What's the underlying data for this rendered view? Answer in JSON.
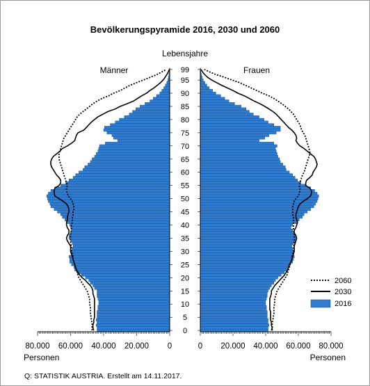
{
  "chart_data": {
    "type": "bar",
    "title": "Bevölkerungspyramide 2016, 2030 und 2060",
    "y_axis_title": "Lebensjahre",
    "left_label": "Männer",
    "right_label": "Frauen",
    "x_unit_left": "Personen",
    "x_unit_right": "Personen",
    "source": "Q: STATISTIK AUSTRIA. Erstellt am 14.11.2017.",
    "xlim": [
      0,
      80000
    ],
    "ylim": [
      0,
      100
    ],
    "y_ticks": [
      "0",
      "5",
      "10",
      "15",
      "20",
      "25",
      "30",
      "35",
      "40",
      "45",
      "50",
      "55",
      "60",
      "65",
      "70",
      "75",
      "80",
      "85",
      "90",
      "95",
      "99"
    ],
    "x_ticks_left": [
      "80.000",
      "60.000",
      "40.000",
      "20.000",
      "0"
    ],
    "x_ticks_right": [
      "0",
      "20.000",
      "40.000",
      "60.000",
      "80.000"
    ],
    "legend": [
      {
        "name": "2060",
        "style": "dotted"
      },
      {
        "name": "2030",
        "style": "solid"
      },
      {
        "name": "2016",
        "style": "bar"
      }
    ],
    "colors": {
      "bar": "#2e7bcf",
      "bar_edge": "#1a4f8a",
      "line": "#000000"
    },
    "ages": [
      0,
      1,
      2,
      3,
      4,
      5,
      6,
      7,
      8,
      9,
      10,
      11,
      12,
      13,
      14,
      15,
      16,
      17,
      18,
      19,
      20,
      21,
      22,
      23,
      24,
      25,
      26,
      27,
      28,
      29,
      30,
      31,
      32,
      33,
      34,
      35,
      36,
      37,
      38,
      39,
      40,
      41,
      42,
      43,
      44,
      45,
      46,
      47,
      48,
      49,
      50,
      51,
      52,
      53,
      54,
      55,
      56,
      57,
      58,
      59,
      60,
      61,
      62,
      63,
      64,
      65,
      66,
      67,
      68,
      69,
      70,
      71,
      72,
      73,
      74,
      75,
      76,
      77,
      78,
      79,
      80,
      81,
      82,
      83,
      84,
      85,
      86,
      87,
      88,
      89,
      90,
      91,
      92,
      93,
      94,
      95,
      96,
      97,
      98,
      99
    ],
    "series": [
      {
        "name": "2016",
        "sex": "Männer",
        "values": [
          44000,
          44000,
          44500,
          44000,
          44500,
          44000,
          44000,
          44000,
          43500,
          43500,
          43000,
          43000,
          43500,
          44000,
          44000,
          44000,
          45500,
          46500,
          48000,
          49000,
          51000,
          53500,
          56000,
          57500,
          58000,
          59500,
          60500,
          60500,
          61000,
          59500,
          60000,
          59000,
          58500,
          59000,
          60000,
          61000,
          61000,
          60000,
          59500,
          60000,
          60500,
          62500,
          63500,
          65000,
          66000,
          68000,
          70000,
          72000,
          72500,
          73500,
          74000,
          74500,
          73500,
          72000,
          69500,
          66000,
          63000,
          61000,
          58500,
          57000,
          55000,
          52500,
          51500,
          49500,
          48000,
          47000,
          45500,
          44500,
          43500,
          43000,
          42500,
          39000,
          31500,
          34000,
          35000,
          38000,
          40000,
          39500,
          36000,
          33000,
          30500,
          27500,
          24500,
          22500,
          20500,
          18000,
          15000,
          12000,
          10000,
          8000,
          6000,
          4800,
          3600,
          2600,
          1800,
          1200,
          800,
          500,
          300,
          200
        ]
      },
      {
        "name": "2016",
        "sex": "Frauen",
        "values": [
          41500,
          41500,
          42000,
          41500,
          41500,
          41000,
          41000,
          41000,
          40500,
          40500,
          40000,
          40000,
          40500,
          41000,
          41000,
          41500,
          42500,
          43500,
          45000,
          46000,
          47500,
          49500,
          51500,
          53000,
          54000,
          55000,
          56500,
          57000,
          57500,
          56500,
          57000,
          56500,
          56000,
          57000,
          58500,
          59000,
          58500,
          57500,
          56500,
          55500,
          56500,
          59000,
          60500,
          62500,
          63500,
          65500,
          67500,
          69500,
          70500,
          71500,
          72000,
          72500,
          71500,
          70000,
          67500,
          64500,
          61500,
          59500,
          58000,
          56500,
          54500,
          52500,
          52000,
          50500,
          49000,
          48500,
          47500,
          47000,
          46500,
          46000,
          47000,
          45000,
          36000,
          39500,
          42000,
          46500,
          49000,
          49000,
          45000,
          41500,
          39000,
          36000,
          32500,
          30000,
          28000,
          25000,
          21000,
          17500,
          15000,
          12500,
          9500,
          7500,
          5500,
          4000,
          2800,
          1800,
          1200,
          700,
          400,
          200
        ]
      },
      {
        "name": "2030",
        "sex": "Männer",
        "values": [
          46000,
          46500,
          46500,
          46000,
          46000,
          45500,
          45500,
          45500,
          45500,
          45500,
          45500,
          45500,
          45500,
          46000,
          46500,
          46500,
          47000,
          48000,
          49500,
          51000,
          53000,
          54500,
          55500,
          56500,
          57000,
          57500,
          58000,
          58500,
          59000,
          59500,
          60000,
          60000,
          60000,
          61000,
          62000,
          62500,
          62000,
          61000,
          61000,
          62000,
          62500,
          62500,
          62000,
          62000,
          61500,
          61000,
          61000,
          61500,
          62500,
          64500,
          67000,
          69500,
          70000,
          70000,
          69500,
          67000,
          66000,
          66000,
          67000,
          68500,
          69500,
          70500,
          71500,
          72000,
          72000,
          71500,
          70500,
          68500,
          66500,
          65000,
          62000,
          59500,
          57500,
          57000,
          56500,
          55500,
          52000,
          50500,
          49000,
          47500,
          45500,
          43500,
          40500,
          37500,
          33000,
          30000,
          26000,
          22000,
          19500,
          17000,
          14000,
          12000,
          9500,
          7500,
          5500,
          4000,
          2800,
          1800,
          900,
          300
        ]
      },
      {
        "name": "2030",
        "sex": "Frauen",
        "values": [
          43500,
          44000,
          43500,
          43500,
          43000,
          43000,
          43000,
          43000,
          42500,
          42500,
          42500,
          42500,
          42500,
          43000,
          43500,
          43500,
          44500,
          45500,
          47000,
          48500,
          50000,
          51500,
          52500,
          53500,
          54000,
          54500,
          55500,
          56000,
          56500,
          57000,
          57500,
          57500,
          57500,
          58000,
          58500,
          59000,
          58500,
          57500,
          57500,
          58500,
          59000,
          59500,
          59000,
          58500,
          58500,
          59000,
          59500,
          60000,
          61000,
          63000,
          65500,
          67500,
          68000,
          68000,
          67000,
          64500,
          64500,
          65000,
          67000,
          68500,
          69000,
          70000,
          71000,
          71500,
          71000,
          70500,
          69500,
          67500,
          65500,
          63500,
          61000,
          59500,
          58500,
          59000,
          58500,
          57500,
          56000,
          54000,
          52500,
          51000,
          49500,
          48000,
          46500,
          44500,
          42000,
          39500,
          36500,
          33000,
          30000,
          27000,
          23000,
          20000,
          16500,
          13000,
          10000,
          7000,
          4500,
          2800,
          1400,
          500
        ]
      },
      {
        "name": "2060",
        "sex": "Männer",
        "values": [
          47000,
          47000,
          47000,
          47000,
          47500,
          47500,
          48000,
          48000,
          48000,
          48000,
          48500,
          48500,
          48500,
          49000,
          49500,
          50000,
          51000,
          52000,
          53000,
          54000,
          55000,
          55500,
          56000,
          56500,
          57000,
          57500,
          58000,
          58500,
          58500,
          59000,
          59500,
          59500,
          59500,
          60000,
          60000,
          60000,
          60000,
          60000,
          59500,
          59500,
          59500,
          59000,
          59000,
          59000,
          58500,
          58500,
          58000,
          58000,
          58500,
          59000,
          60000,
          61500,
          62000,
          62500,
          62500,
          62000,
          62500,
          63000,
          63500,
          64000,
          64500,
          65000,
          65500,
          66000,
          66500,
          67000,
          67000,
          67000,
          66500,
          66000,
          65500,
          65000,
          64500,
          64000,
          63000,
          62000,
          61000,
          60000,
          59000,
          58000,
          57000,
          56000,
          54500,
          52500,
          50500,
          48500,
          46500,
          44000,
          41000,
          37000,
          34000,
          30000,
          27000,
          24000,
          20000,
          16000,
          12000,
          8000,
          5000,
          2000
        ]
      },
      {
        "name": "2060",
        "sex": "Frauen",
        "values": [
          44000,
          44000,
          44000,
          44000,
          44500,
          44500,
          45000,
          45000,
          45000,
          45000,
          45500,
          45500,
          45500,
          46000,
          46500,
          47000,
          48000,
          49000,
          50000,
          51000,
          52000,
          53000,
          53500,
          54000,
          54500,
          55000,
          55500,
          56000,
          56000,
          56500,
          57000,
          57000,
          57000,
          57500,
          57500,
          57500,
          57500,
          57500,
          57000,
          57000,
          57000,
          57000,
          57000,
          57000,
          56500,
          56500,
          56500,
          56500,
          57000,
          57500,
          58500,
          60000,
          60500,
          61000,
          61000,
          60500,
          61000,
          61500,
          62000,
          62500,
          63500,
          64000,
          64500,
          65000,
          65500,
          66000,
          66500,
          67000,
          67000,
          66500,
          66000,
          65500,
          65000,
          64500,
          64000,
          63000,
          62000,
          61500,
          61000,
          60000,
          59000,
          58000,
          57000,
          55500,
          54000,
          52000,
          50000,
          47500,
          45000,
          42000,
          38000,
          34500,
          31000,
          27500,
          24000,
          19500,
          15000,
          10000,
          6000,
          2500
        ]
      }
    ]
  }
}
